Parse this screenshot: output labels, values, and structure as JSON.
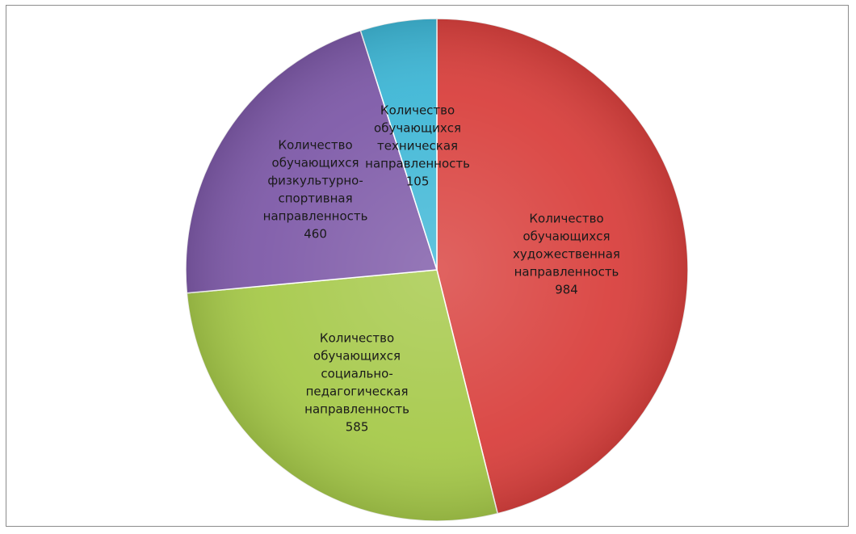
{
  "chart_data": {
    "type": "pie",
    "title": "",
    "start_angle_deg": 0,
    "direction": "clockwise",
    "slices": [
      {
        "label_lines": [
          "Количество",
          "обучающихся",
          "художественная",
          "направленность"
        ],
        "value": 984,
        "value_label": "984",
        "color": "#d9413e"
      },
      {
        "label_lines": [
          "Количество",
          "обучающихся",
          "социально-",
          "педагогическая",
          "направленность"
        ],
        "value": 585,
        "value_label": "585",
        "color": "#a6c94a"
      },
      {
        "label_lines": [
          "Количество",
          "обучающихся",
          "физкультурно-",
          "спортивная",
          "направленность"
        ],
        "value": 460,
        "value_label": "460",
        "color": "#7e5aa8"
      },
      {
        "label_lines": [
          "Количество",
          "обучающихся",
          "техническая",
          "направленность"
        ],
        "value": 105,
        "value_label": "105",
        "color": "#3fb7d6"
      }
    ],
    "legend": "none",
    "data_labels": "inside"
  }
}
